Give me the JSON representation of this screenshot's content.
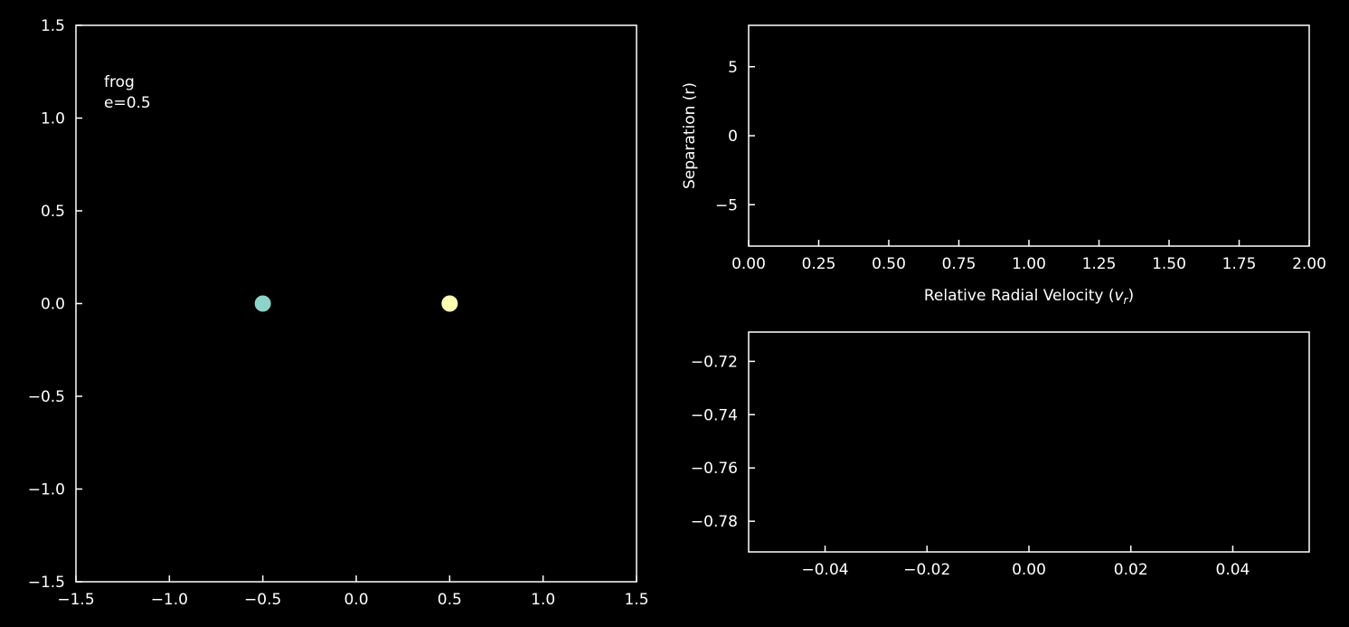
{
  "theme": {
    "background": "#000000",
    "foreground": "#ffffff"
  },
  "chart_data": [
    {
      "type": "scatter",
      "title": "",
      "xlabel": "",
      "ylabel": "",
      "xlim": [
        -1.5,
        1.5
      ],
      "ylim": [
        -1.5,
        1.5
      ],
      "xticks": [
        -1.5,
        -1.0,
        -0.5,
        0.0,
        0.5,
        1.0,
        1.5
      ],
      "yticks": [
        -1.5,
        -1.0,
        -0.5,
        0.0,
        0.5,
        1.0,
        1.5
      ],
      "xtick_labels": [
        "−1.5",
        "−1.0",
        "−0.5",
        "0.0",
        "0.5",
        "1.0",
        "1.5"
      ],
      "ytick_labels": [
        "−1.5",
        "−1.0",
        "−0.5",
        "0.0",
        "0.5",
        "1.0",
        "1.5"
      ],
      "annotation": {
        "line1": "frog",
        "line2": "e=0.5"
      },
      "grid": false,
      "points": [
        {
          "x": -0.5,
          "y": 0.0,
          "color": "#8dd3c7"
        },
        {
          "x": 0.5,
          "y": 0.0,
          "color": "#feffb3"
        }
      ]
    },
    {
      "type": "line",
      "title": "",
      "xlabel": "Relative Radial Velocity",
      "xlabel_symbol": "v",
      "xlabel_subscript": "r",
      "ylabel": "Separation (r)",
      "xlim": [
        0.0,
        2.0
      ],
      "ylim": [
        -8,
        8
      ],
      "xticks": [
        0.0,
        0.25,
        0.5,
        0.75,
        1.0,
        1.25,
        1.5,
        1.75,
        2.0
      ],
      "yticks": [
        -5,
        0,
        5
      ],
      "xtick_labels": [
        "0.00",
        "0.25",
        "0.50",
        "0.75",
        "1.00",
        "1.25",
        "1.50",
        "1.75",
        "2.00"
      ],
      "ytick_labels": [
        "−5",
        "0",
        "5"
      ],
      "grid": false,
      "series": []
    },
    {
      "type": "line",
      "title": "",
      "xlabel": "",
      "ylabel": "",
      "xlim": [
        -0.055,
        0.055
      ],
      "ylim": [
        -0.7915,
        -0.709
      ],
      "xticks": [
        -0.04,
        -0.02,
        0.0,
        0.02,
        0.04
      ],
      "yticks": [
        -0.72,
        -0.74,
        -0.76,
        -0.78
      ],
      "xtick_labels": [
        "−0.04",
        "−0.02",
        "0.00",
        "0.02",
        "0.04"
      ],
      "ytick_labels": [
        "−0.72",
        "−0.74",
        "−0.76",
        "−0.78"
      ],
      "grid": false,
      "series": []
    }
  ]
}
